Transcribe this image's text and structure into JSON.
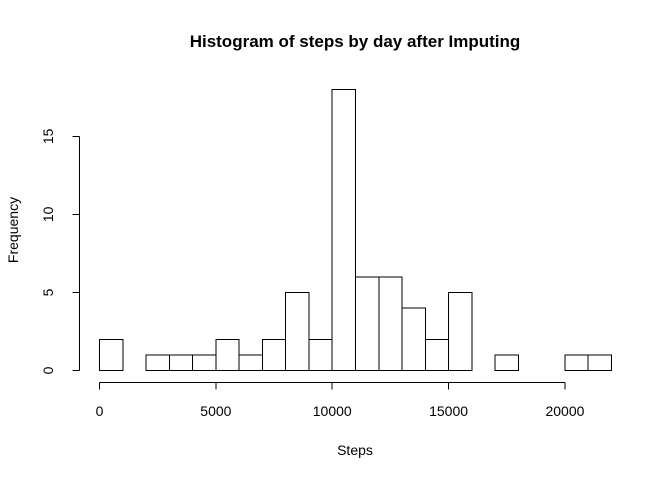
{
  "chart_data": {
    "type": "bar",
    "title": "Histogram of steps by day after Imputing",
    "xlabel": "Steps",
    "ylabel": "Frequency",
    "bin_width": 1000,
    "bins": [
      {
        "from": 0,
        "to": 1000,
        "count": 2
      },
      {
        "from": 1000,
        "to": 2000,
        "count": 0
      },
      {
        "from": 2000,
        "to": 3000,
        "count": 1
      },
      {
        "from": 3000,
        "to": 4000,
        "count": 1
      },
      {
        "from": 4000,
        "to": 5000,
        "count": 1
      },
      {
        "from": 5000,
        "to": 6000,
        "count": 2
      },
      {
        "from": 6000,
        "to": 7000,
        "count": 1
      },
      {
        "from": 7000,
        "to": 8000,
        "count": 2
      },
      {
        "from": 8000,
        "to": 9000,
        "count": 5
      },
      {
        "from": 9000,
        "to": 10000,
        "count": 2
      },
      {
        "from": 10000,
        "to": 11000,
        "count": 18
      },
      {
        "from": 11000,
        "to": 12000,
        "count": 6
      },
      {
        "from": 12000,
        "to": 13000,
        "count": 6
      },
      {
        "from": 13000,
        "to": 14000,
        "count": 4
      },
      {
        "from": 14000,
        "to": 15000,
        "count": 2
      },
      {
        "from": 15000,
        "to": 16000,
        "count": 5
      },
      {
        "from": 16000,
        "to": 17000,
        "count": 0
      },
      {
        "from": 17000,
        "to": 18000,
        "count": 1
      },
      {
        "from": 18000,
        "to": 19000,
        "count": 0
      },
      {
        "from": 19000,
        "to": 20000,
        "count": 0
      },
      {
        "from": 20000,
        "to": 21000,
        "count": 1
      },
      {
        "from": 21000,
        "to": 22000,
        "count": 1
      }
    ],
    "x_ticks": [
      0,
      5000,
      10000,
      15000,
      20000
    ],
    "y_ticks": [
      0,
      5,
      10,
      15
    ],
    "xlim": [
      0,
      22000
    ],
    "ylim": [
      0,
      18
    ],
    "grid": false,
    "legend": "none"
  }
}
